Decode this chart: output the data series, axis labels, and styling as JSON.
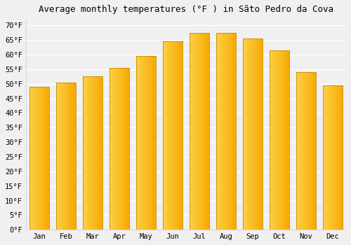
{
  "title": "Average monthly temperatures (°F ) in Sãto Pedro da Cova",
  "months": [
    "Jan",
    "Feb",
    "Mar",
    "Apr",
    "May",
    "Jun",
    "Jul",
    "Aug",
    "Sep",
    "Oct",
    "Nov",
    "Dec"
  ],
  "values": [
    49,
    50.5,
    52.5,
    55.5,
    59.5,
    64.5,
    67.5,
    67.5,
    65.5,
    61.5,
    54,
    49.5
  ],
  "bar_color_left": "#FFD045",
  "bar_color_right": "#F5A800",
  "bar_edge_color": "#C88800",
  "ylim": [
    0,
    72
  ],
  "yticks": [
    0,
    5,
    10,
    15,
    20,
    25,
    30,
    35,
    40,
    45,
    50,
    55,
    60,
    65,
    70
  ],
  "background_color": "#f0f0f0",
  "grid_color": "#ffffff",
  "title_fontsize": 9,
  "tick_fontsize": 7.5,
  "bar_width": 0.75
}
